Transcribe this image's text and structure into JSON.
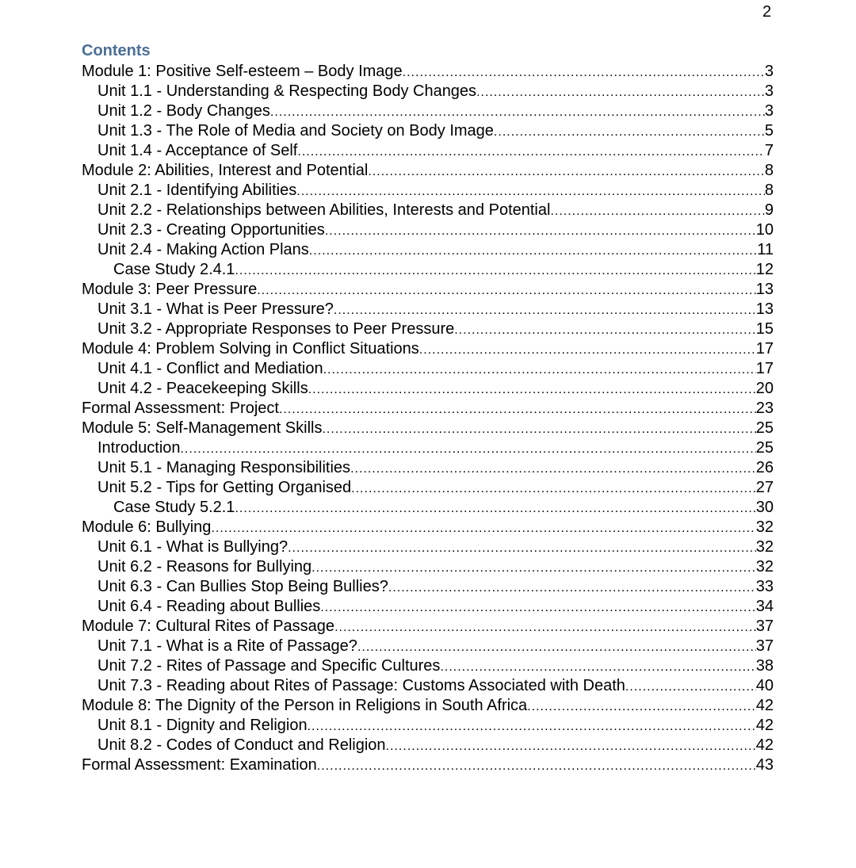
{
  "page_number": "2",
  "heading": "Contents",
  "toc": [
    {
      "level": 0,
      "title": "Module 1: Positive Self-esteem – Body Image",
      "page": "3"
    },
    {
      "level": 1,
      "title": "Unit 1.1 - Understanding & Respecting Body Changes",
      "page": "3"
    },
    {
      "level": 1,
      "title": "Unit 1.2 - Body Changes",
      "page": "3"
    },
    {
      "level": 1,
      "title": "Unit 1.3 - The Role of Media and Society on Body Image",
      "page": "5"
    },
    {
      "level": 1,
      "title": "Unit 1.4 - Acceptance of Self",
      "page": "7"
    },
    {
      "level": 0,
      "title": "Module 2: Abilities, Interest and Potential",
      "page": "8"
    },
    {
      "level": 1,
      "title": "Unit 2.1 - Identifying Abilities",
      "page": "8"
    },
    {
      "level": 1,
      "title": "Unit 2.2 - Relationships between Abilities, Interests and Potential",
      "page": "9"
    },
    {
      "level": 1,
      "title": "Unit 2.3 - Creating Opportunities",
      "page": "10"
    },
    {
      "level": 1,
      "title": "Unit 2.4 - Making Action Plans",
      "page": "11"
    },
    {
      "level": 2,
      "title": "Case Study 2.4.1",
      "page": "12"
    },
    {
      "level": 0,
      "title": "Module 3: Peer Pressure",
      "page": "13"
    },
    {
      "level": 1,
      "title": "Unit 3.1 - What is Peer Pressure?",
      "page": "13"
    },
    {
      "level": 1,
      "title": "Unit 3.2 - Appropriate Responses to Peer Pressure",
      "page": "15"
    },
    {
      "level": 0,
      "title": "Module 4: Problem Solving in Conflict Situations",
      "page": "17"
    },
    {
      "level": 1,
      "title": "Unit 4.1 - Conflict and Mediation",
      "page": "17"
    },
    {
      "level": 1,
      "title": "Unit 4.2 - Peacekeeping Skills",
      "page": "20"
    },
    {
      "level": 0,
      "title": "Formal Assessment: Project",
      "page": "23"
    },
    {
      "level": 0,
      "title": "Module 5: Self-Management Skills",
      "page": "25"
    },
    {
      "level": 1,
      "title": "Introduction",
      "page": "25"
    },
    {
      "level": 1,
      "title": "Unit 5.1 - Managing Responsibilities",
      "page": "26"
    },
    {
      "level": 1,
      "title": "Unit 5.2 - Tips for Getting Organised",
      "page": "27"
    },
    {
      "level": 2,
      "title": "Case Study 5.2.1",
      "page": "30"
    },
    {
      "level": 0,
      "title": "Module 6: Bullying",
      "page": "32"
    },
    {
      "level": 1,
      "title": "Unit 6.1 - What is Bullying?",
      "page": "32"
    },
    {
      "level": 1,
      "title": "Unit 6.2 - Reasons for Bullying",
      "page": "32"
    },
    {
      "level": 1,
      "title": "Unit 6.3 - Can Bullies Stop Being Bullies?",
      "page": "33"
    },
    {
      "level": 1,
      "title": "Unit 6.4 - Reading about Bullies",
      "page": "34"
    },
    {
      "level": 0,
      "title": "Module 7: Cultural Rites of Passage",
      "page": "37"
    },
    {
      "level": 1,
      "title": "Unit 7.1 - What is a Rite of Passage?",
      "page": "37"
    },
    {
      "level": 1,
      "title": "Unit 7.2 - Rites of Passage and Specific Cultures",
      "page": "38"
    },
    {
      "level": 1,
      "title": "Unit 7.3 - Reading about Rites of Passage: Customs Associated with Death",
      "page": "40"
    },
    {
      "level": 0,
      "title": "Module 8: The Dignity of the Person in Religions in South Africa",
      "page": "42"
    },
    {
      "level": 1,
      "title": "Unit 8.1 - Dignity and Religion",
      "page": "42"
    },
    {
      "level": 1,
      "title": "Unit 8.2 - Codes of Conduct and Religion",
      "page": "42"
    },
    {
      "level": 0,
      "title": "Formal Assessment: Examination",
      "page": "43"
    }
  ]
}
